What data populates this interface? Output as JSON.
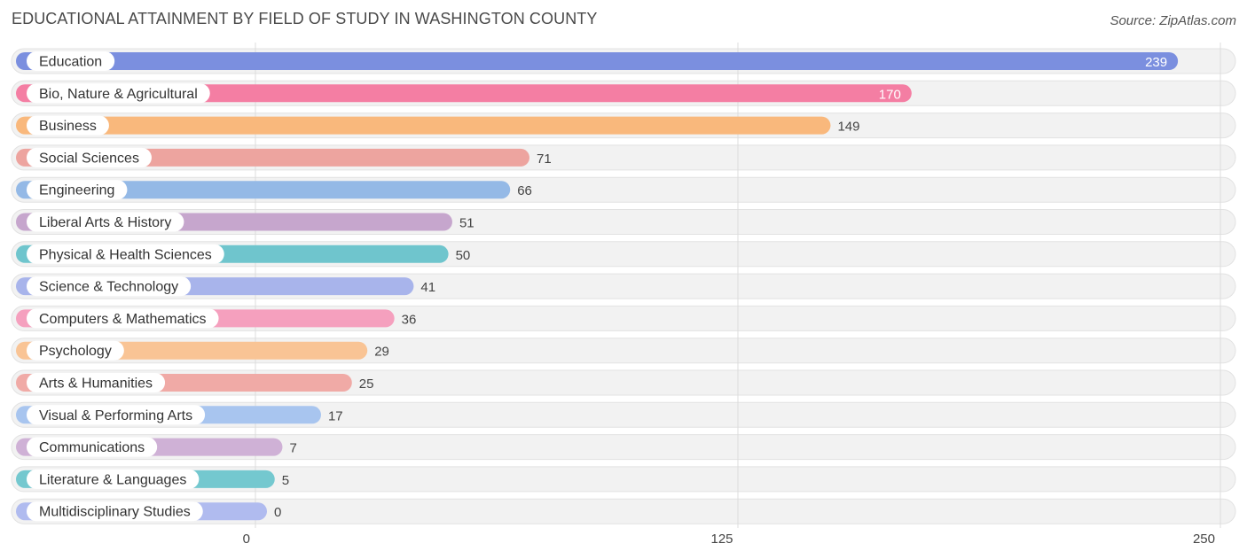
{
  "title": "EDUCATIONAL ATTAINMENT BY FIELD OF STUDY IN WASHINGTON COUNTY",
  "source": "Source: ZipAtlas.com",
  "chart_data": {
    "type": "bar",
    "orientation": "horizontal",
    "title": "EDUCATIONAL ATTAINMENT BY FIELD OF STUDY IN WASHINGTON COUNTY",
    "xlabel": "",
    "ylabel": "",
    "xlim": [
      0,
      250
    ],
    "xticks": [
      0,
      125,
      250
    ],
    "xtick_labels": [
      "0",
      "125",
      "250"
    ],
    "grid": true,
    "categories": [
      "Education",
      "Bio, Nature & Agricultural",
      "Business",
      "Social Sciences",
      "Engineering",
      "Liberal Arts & History",
      "Physical & Health Sciences",
      "Science & Technology",
      "Computers & Mathematics",
      "Psychology",
      "Arts & Humanities",
      "Visual & Performing Arts",
      "Communications",
      "Literature & Languages",
      "Multidisciplinary Studies"
    ],
    "values": [
      239,
      170,
      149,
      71,
      66,
      51,
      50,
      41,
      36,
      29,
      25,
      17,
      7,
      5,
      0
    ],
    "colors": [
      "#7b8fdf",
      "#f47ea3",
      "#f9b87c",
      "#eda49f",
      "#94b9e6",
      "#c6a6cd",
      "#6fc5cd",
      "#a8b4eb",
      "#f5a0be",
      "#f9c495",
      "#f0aaa6",
      "#a8c5ef",
      "#cfb1d6",
      "#74c8cf",
      "#b0bbef"
    ]
  }
}
